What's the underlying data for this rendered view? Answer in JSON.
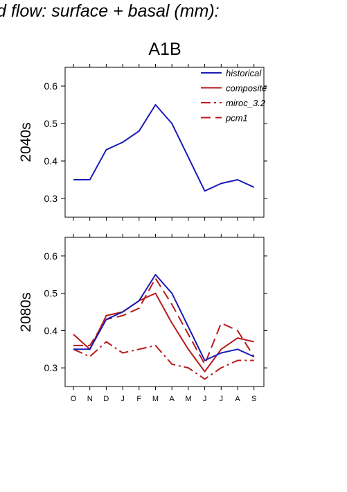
{
  "page_title": "d flow: surface + basal (mm):",
  "scenario": "A1B",
  "chart_data": [
    {
      "type": "line",
      "panel_label": "2040s",
      "categories": [
        "O",
        "N",
        "D",
        "J",
        "F",
        "M",
        "A",
        "M",
        "J",
        "J",
        "A",
        "S"
      ],
      "ylim": [
        0.25,
        0.65
      ],
      "yticks": [
        0.3,
        0.4,
        0.5,
        0.6
      ],
      "legend_position": "top-right",
      "legend": [
        {
          "name": "historical",
          "color": "#1a1ab8",
          "dash": "solid"
        },
        {
          "name": "composite",
          "color": "#b81a1a",
          "dash": "solid"
        },
        {
          "name": "miroc_3.2",
          "color": "#b81a1a",
          "dash": "dashdot"
        },
        {
          "name": "pcm1",
          "color": "#b81a1a",
          "dash": "dashed"
        }
      ],
      "series": [
        {
          "name": "historical",
          "color": "#1a1ab8",
          "dash": "solid",
          "values": [
            0.35,
            0.35,
            0.43,
            0.45,
            0.48,
            0.55,
            0.5,
            0.41,
            0.32,
            0.34,
            0.35,
            0.33
          ]
        }
      ]
    },
    {
      "type": "line",
      "panel_label": "2080s",
      "categories": [
        "O",
        "N",
        "D",
        "J",
        "F",
        "M",
        "A",
        "M",
        "J",
        "J",
        "A",
        "S"
      ],
      "ylim": [
        0.25,
        0.65
      ],
      "yticks": [
        0.3,
        0.4,
        0.5,
        0.6
      ],
      "series": [
        {
          "name": "historical",
          "color": "#1a1ab8",
          "dash": "solid",
          "values": [
            0.35,
            0.35,
            0.43,
            0.45,
            0.48,
            0.55,
            0.5,
            0.41,
            0.32,
            0.34,
            0.35,
            0.33
          ]
        },
        {
          "name": "composite",
          "color": "#b81a1a",
          "dash": "solid",
          "values": [
            0.39,
            0.35,
            0.44,
            0.45,
            0.48,
            0.5,
            0.42,
            0.35,
            0.29,
            0.35,
            0.38,
            0.37
          ]
        },
        {
          "name": "miroc_3.2",
          "color": "#b81a1a",
          "dash": "dashdot",
          "values": [
            0.35,
            0.33,
            0.37,
            0.34,
            0.35,
            0.36,
            0.31,
            0.3,
            0.27,
            0.3,
            0.32,
            0.32
          ]
        },
        {
          "name": "pcm1",
          "color": "#b81a1a",
          "dash": "dashed",
          "values": [
            0.36,
            0.36,
            0.43,
            0.44,
            0.46,
            0.54,
            0.47,
            0.39,
            0.31,
            0.42,
            0.4,
            0.33
          ]
        }
      ]
    }
  ]
}
